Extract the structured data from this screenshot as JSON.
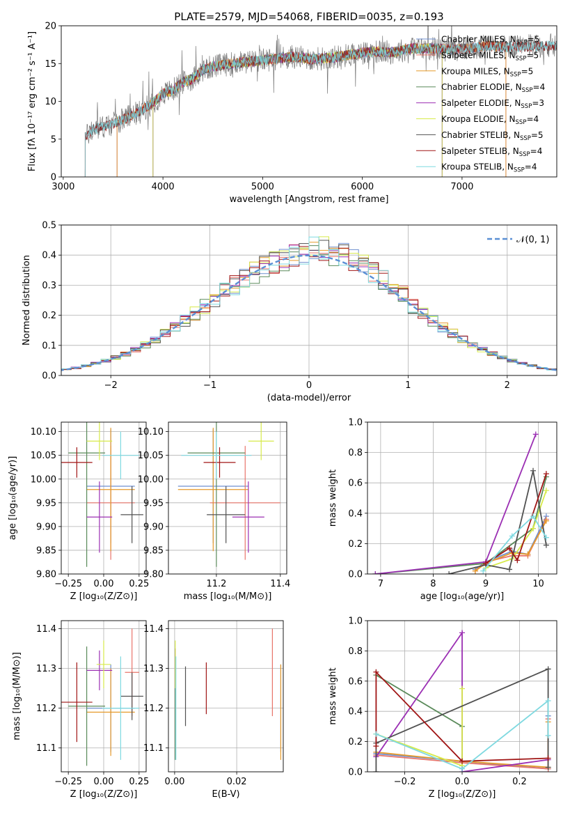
{
  "figure": {
    "title": "PLATE=2579, MJD=54068, FIBERID=0035, z=0.193"
  },
  "colors": {
    "chabrier_miles": "#6f8fcf",
    "salpeter_miles": "#e8746a",
    "kroupa_miles": "#e69a2a",
    "chabrier_elodie": "#5a8a5a",
    "salpeter_elodie": "#9b2fb3",
    "kroupa_elodie": "#d7ea4a",
    "chabrier_stelib": "#505050",
    "salpeter_stelib": "#a01515",
    "kroupa_stelib": "#7fd9e0",
    "gaussian": "#5a8fd4",
    "grid": "#b0b0b0",
    "data_spectrum": "#777777"
  },
  "chart_data": [
    {
      "id": "spectrum",
      "type": "line",
      "xlabel": "wavelength [Angstrom, rest frame]",
      "ylabel": "Flux [fλ 10⁻¹⁷ erg cm⁻² s⁻¹ A⁻¹]",
      "xlim": [
        2980,
        7950
      ],
      "ylim": [
        0,
        20
      ],
      "xticks": [
        3000,
        4000,
        5000,
        6000,
        7000
      ],
      "yticks": [
        0,
        5,
        10,
        15,
        20
      ],
      "grid": false,
      "legend_position": "upper-right",
      "legend": [
        {
          "label": "Chabrier MILES, N",
          "sub": "SSP",
          "suffix": "=5",
          "color_key": "chabrier_miles"
        },
        {
          "label": "Salpeter MILES, N",
          "sub": "SSP",
          "suffix": "=5",
          "color_key": "salpeter_miles"
        },
        {
          "label": "Kroupa MILES, N",
          "sub": "SSP",
          "suffix": "=5",
          "color_key": "kroupa_miles"
        },
        {
          "label": "Chabrier ELODIE, N",
          "sub": "SSP",
          "suffix": "=4",
          "color_key": "chabrier_elodie"
        },
        {
          "label": "Salpeter ELODIE, N",
          "sub": "SSP",
          "suffix": "=3",
          "color_key": "salpeter_elodie"
        },
        {
          "label": "Kroupa ELODIE, N",
          "sub": "SSP",
          "suffix": "=4",
          "color_key": "kroupa_elodie"
        },
        {
          "label": "Chabrier STELIB, N",
          "sub": "SSP",
          "suffix": "=5",
          "color_key": "chabrier_stelib"
        },
        {
          "label": "Salpeter STELIB, N",
          "sub": "SSP",
          "suffix": "=4",
          "color_key": "salpeter_stelib"
        },
        {
          "label": "Kroupa STELIB, N",
          "sub": "SSP",
          "suffix": "=4",
          "color_key": "kroupa_stelib"
        }
      ],
      "continuum": {
        "x": [
          3200,
          3300,
          3450,
          3600,
          3750,
          3900,
          4000,
          4100,
          4200,
          4300,
          4400,
          4500,
          4700,
          4900,
          5100,
          5300,
          5500,
          5700,
          5900,
          6100,
          6300,
          6500,
          6700,
          6900,
          7100,
          7300,
          7500,
          7700,
          7900
        ],
        "y": [
          5.0,
          6.3,
          6.8,
          7.6,
          8.5,
          9.8,
          11.0,
          11.5,
          12.5,
          13.0,
          14.2,
          14.6,
          15.0,
          15.3,
          15.6,
          15.9,
          15.6,
          15.8,
          16.2,
          16.6,
          16.5,
          17.0,
          17.0,
          16.8,
          17.1,
          17.3,
          17.2,
          17.3,
          17.4
        ]
      },
      "model_ranges": [
        {
          "color_key": "chabrier_miles",
          "x": [
            3540,
            7440
          ]
        },
        {
          "color_key": "salpeter_miles",
          "x": [
            3540,
            7440
          ]
        },
        {
          "color_key": "kroupa_miles",
          "x": [
            3540,
            7440
          ]
        },
        {
          "color_key": "chabrier_elodie",
          "x": [
            3900,
            6800
          ]
        },
        {
          "color_key": "salpeter_elodie",
          "x": [
            3900,
            6800
          ]
        },
        {
          "color_key": "kroupa_elodie",
          "x": [
            3900,
            6800
          ]
        },
        {
          "color_key": "chabrier_stelib",
          "x": [
            3220,
            7950
          ]
        },
        {
          "color_key": "salpeter_stelib",
          "x": [
            3220,
            7950
          ]
        },
        {
          "color_key": "kroupa_stelib",
          "x": [
            3220,
            7950
          ]
        }
      ]
    },
    {
      "id": "residuals",
      "type": "histogram",
      "xlabel": "(data-model)/error",
      "ylabel": "Normed distribution",
      "xlim": [
        -2.5,
        2.5
      ],
      "ylim": [
        0,
        0.5
      ],
      "xticks": [
        -2,
        -1,
        0,
        1,
        2
      ],
      "yticks": [
        0.0,
        0.1,
        0.2,
        0.3,
        0.4,
        0.5
      ],
      "grid": true,
      "bin_width": 0.1,
      "legend_position": "upper-right",
      "gaussian_label": "𝒩(0, 1)",
      "series_colors": [
        "chabrier_miles",
        "salpeter_miles",
        "kroupa_miles",
        "chabrier_elodie",
        "salpeter_elodie",
        "kroupa_elodie",
        "chabrier_stelib",
        "salpeter_stelib",
        "kroupa_stelib"
      ]
    },
    {
      "id": "age_vs_Z",
      "type": "errorbar",
      "xlabel": "Z [log₁₀(Z/Z⊙)]",
      "ylabel": "age  [log₁₀(age/yr)]",
      "xlim": [
        -0.3,
        0.3
      ],
      "ylim": [
        9.8,
        10.12
      ],
      "xticks": [
        -0.25,
        0.0,
        0.25
      ],
      "yticks": [
        9.8,
        9.85,
        9.9,
        9.95,
        10.0,
        10.05,
        10.1
      ],
      "xtick_labels": [
        "−0.25",
        "0.00",
        "0.25"
      ],
      "ytick_labels": [
        "9.80",
        "9.85",
        "9.90",
        "9.95",
        "10.00",
        "10.05",
        "10.10"
      ],
      "grid": true,
      "points": [
        {
          "color_key": "chabrier_miles",
          "x": 0.05,
          "xerr": 0.17,
          "y": 9.985,
          "yerr": 0.12
        },
        {
          "color_key": "salpeter_miles",
          "x": 0.05,
          "xerr": 0.17,
          "y": 9.95,
          "yerr": 0.12
        },
        {
          "color_key": "kroupa_miles",
          "x": 0.05,
          "xerr": 0.17,
          "y": 9.978,
          "yerr": 0.13
        },
        {
          "color_key": "chabrier_elodie",
          "x": -0.12,
          "xerr": 0.13,
          "y": 10.055,
          "yerr": 0.24
        },
        {
          "color_key": "salpeter_elodie",
          "x": -0.03,
          "xerr": 0.09,
          "y": 9.92,
          "yerr": 0.075
        },
        {
          "color_key": "kroupa_elodie",
          "x": -0.03,
          "xerr": 0.09,
          "y": 10.08,
          "yerr": 0.04
        },
        {
          "color_key": "chabrier_stelib",
          "x": 0.2,
          "xerr": 0.08,
          "y": 9.925,
          "yerr": 0.06
        },
        {
          "color_key": "salpeter_stelib",
          "x": -0.19,
          "xerr": 0.11,
          "y": 10.035,
          "yerr": 0.032
        },
        {
          "color_key": "kroupa_stelib",
          "x": 0.12,
          "xerr": 0.13,
          "y": 10.05,
          "yerr": 0.05
        }
      ]
    },
    {
      "id": "age_vs_mass",
      "type": "errorbar",
      "xlabel": "mass [log₁₀(M/M⊙)]",
      "ylabel": "",
      "xlim": [
        11.05,
        11.42
      ],
      "ylim": [
        9.8,
        10.12
      ],
      "xticks": [
        11.2,
        11.4
      ],
      "yticks": [
        9.8,
        9.85,
        9.9,
        9.95,
        10.0,
        10.05,
        10.1
      ],
      "xtick_labels": [
        "11.2",
        "11.4"
      ],
      "ytick_labels": [
        "9.80",
        "9.85",
        "9.90",
        "9.95",
        "10.00",
        "10.05",
        "10.10"
      ],
      "grid": true,
      "points": [
        {
          "color_key": "chabrier_miles",
          "x": 11.19,
          "xerr": 0.11,
          "y": 9.985,
          "yerr": 0.12
        },
        {
          "color_key": "salpeter_miles",
          "x": 11.29,
          "xerr": 0.11,
          "y": 9.95,
          "yerr": 0.12
        },
        {
          "color_key": "kroupa_miles",
          "x": 11.19,
          "xerr": 0.11,
          "y": 9.978,
          "yerr": 0.13
        },
        {
          "color_key": "chabrier_elodie",
          "x": 11.2,
          "xerr": 0.09,
          "y": 10.055,
          "yerr": 0.24
        },
        {
          "color_key": "salpeter_elodie",
          "x": 11.3,
          "xerr": 0.05,
          "y": 9.92,
          "yerr": 0.075
        },
        {
          "color_key": "kroupa_elodie",
          "x": 11.34,
          "xerr": 0.04,
          "y": 10.08,
          "yerr": 0.04
        },
        {
          "color_key": "chabrier_stelib",
          "x": 11.23,
          "xerr": 0.06,
          "y": 9.925,
          "yerr": 0.06
        },
        {
          "color_key": "salpeter_stelib",
          "x": 11.21,
          "xerr": 0.05,
          "y": 10.035,
          "yerr": 0.032
        },
        {
          "color_key": "kroupa_stelib",
          "x": 11.2,
          "xerr": 0.11,
          "y": 10.05,
          "yerr": 0.05
        }
      ]
    },
    {
      "id": "weight_vs_age",
      "type": "line",
      "xlabel": "age  [log₁₀(age/yr)]",
      "ylabel": "mass weight",
      "xlim": [
        6.75,
        10.35
      ],
      "ylim": [
        0,
        1
      ],
      "xticks": [
        7,
        8,
        9,
        10
      ],
      "yticks": [
        0.0,
        0.2,
        0.4,
        0.6,
        0.8,
        1.0
      ],
      "grid": true,
      "series": [
        {
          "color_key": "chabrier_miles",
          "x": [
            8.8,
            9.0,
            9.5,
            9.8,
            10.15
          ],
          "y": [
            0.03,
            0.08,
            0.15,
            0.13,
            0.38
          ]
        },
        {
          "color_key": "salpeter_miles",
          "x": [
            8.8,
            9.0,
            9.5,
            9.8,
            10.15
          ],
          "y": [
            0.02,
            0.08,
            0.12,
            0.12,
            0.36
          ]
        },
        {
          "color_key": "kroupa_miles",
          "x": [
            8.8,
            9.0,
            9.5,
            9.8,
            10.15
          ],
          "y": [
            0.02,
            0.07,
            0.14,
            0.13,
            0.35
          ]
        },
        {
          "color_key": "chabrier_elodie",
          "x": [
            6.9,
            9.0,
            9.9,
            10.15
          ],
          "y": [
            0.0,
            0.07,
            0.3,
            0.64
          ]
        },
        {
          "color_key": "salpeter_elodie",
          "x": [
            6.9,
            9.0,
            9.95
          ],
          "y": [
            0.0,
            0.08,
            0.92
          ]
        },
        {
          "color_key": "kroupa_elodie",
          "x": [
            9.0,
            9.5,
            9.9,
            10.15
          ],
          "y": [
            0.04,
            0.1,
            0.3,
            0.55
          ]
        },
        {
          "color_key": "chabrier_stelib",
          "x": [
            8.3,
            9.0,
            9.45,
            9.9,
            10.15
          ],
          "y": [
            0.0,
            0.06,
            0.03,
            0.68,
            0.19
          ]
        },
        {
          "color_key": "salpeter_stelib",
          "x": [
            9.0,
            9.45,
            9.6,
            10.15
          ],
          "y": [
            0.07,
            0.17,
            0.09,
            0.66
          ]
        },
        {
          "color_key": "kroupa_stelib",
          "x": [
            8.95,
            9.5,
            9.9,
            10.15
          ],
          "y": [
            0.02,
            0.25,
            0.38,
            0.24
          ]
        }
      ]
    },
    {
      "id": "mass_vs_Z",
      "type": "errorbar",
      "xlabel": "Z [log₁₀(Z/Z⊙)]",
      "ylabel": "mass [log₁₀(M/M⊙)]",
      "xlim": [
        -0.3,
        0.3
      ],
      "ylim": [
        11.04,
        11.42
      ],
      "xticks": [
        -0.25,
        0.0,
        0.25
      ],
      "yticks": [
        11.1,
        11.2,
        11.3,
        11.4
      ],
      "xtick_labels": [
        "−0.25",
        "0.00",
        "0.25"
      ],
      "ytick_labels": [
        "11.1",
        "11.2",
        "11.3",
        "11.4"
      ],
      "grid": true,
      "points": [
        {
          "color_key": "chabrier_miles",
          "x": 0.05,
          "xerr": 0.17,
          "y": 11.2,
          "yerr": 0.11
        },
        {
          "color_key": "salpeter_miles",
          "x": 0.2,
          "xerr": 0.05,
          "y": 11.29,
          "yerr": 0.11
        },
        {
          "color_key": "kroupa_miles",
          "x": 0.05,
          "xerr": 0.17,
          "y": 11.19,
          "yerr": 0.11
        },
        {
          "color_key": "chabrier_elodie",
          "x": -0.12,
          "xerr": 0.13,
          "y": 11.205,
          "yerr": 0.15
        },
        {
          "color_key": "salpeter_elodie",
          "x": -0.03,
          "xerr": 0.09,
          "y": 11.295,
          "yerr": 0.05
        },
        {
          "color_key": "kroupa_elodie",
          "x": 0.0,
          "xerr": 0.05,
          "y": 11.31,
          "yerr": 0.06
        },
        {
          "color_key": "chabrier_stelib",
          "x": 0.2,
          "xerr": 0.08,
          "y": 11.23,
          "yerr": 0.06
        },
        {
          "color_key": "salpeter_stelib",
          "x": -0.19,
          "xerr": 0.11,
          "y": 11.215,
          "yerr": 0.1
        },
        {
          "color_key": "kroupa_stelib",
          "x": 0.12,
          "xerr": 0.13,
          "y": 11.2,
          "yerr": 0.13
        }
      ]
    },
    {
      "id": "mass_vs_EBV",
      "type": "errorbar",
      "xlabel": "E(B-V)",
      "ylabel": "",
      "xlim": [
        -0.002,
        0.035
      ],
      "ylim": [
        11.04,
        11.42
      ],
      "xticks": [
        0.0,
        0.02
      ],
      "yticks": [
        11.1,
        11.2,
        11.3,
        11.4
      ],
      "xtick_labels": [
        "0.00",
        "0.02"
      ],
      "ytick_labels": [
        "11.1",
        "11.2",
        "11.3",
        "11.4"
      ],
      "grid": true,
      "points": [
        {
          "color_key": "chabrier_miles",
          "x": 0.0342,
          "xerr": 0,
          "y": 11.2,
          "yerr": 0.11
        },
        {
          "color_key": "salpeter_miles",
          "x": 0.0315,
          "xerr": 0,
          "y": 11.29,
          "yerr": 0.11
        },
        {
          "color_key": "kroupa_miles",
          "x": 0.0342,
          "xerr": 0,
          "y": 11.19,
          "yerr": 0.12
        },
        {
          "color_key": "chabrier_elodie",
          "x": 0.0002,
          "xerr": 0,
          "y": 11.21,
          "yerr": 0.14
        },
        {
          "color_key": "salpeter_elodie",
          "x": 0.0002,
          "xerr": 0,
          "y": 11.3,
          "yerr": 0.05
        },
        {
          "color_key": "kroupa_elodie",
          "x": 0.0002,
          "xerr": 0,
          "y": 11.31,
          "yerr": 0.06
        },
        {
          "color_key": "chabrier_stelib",
          "x": 0.0035,
          "xerr": 0,
          "y": 11.23,
          "yerr": 0.075
        },
        {
          "color_key": "salpeter_stelib",
          "x": 0.0102,
          "xerr": 0,
          "y": 11.25,
          "yerr": 0.065
        },
        {
          "color_key": "kroupa_stelib",
          "x": 0.0004,
          "xerr": 0,
          "y": 11.2,
          "yerr": 0.13
        }
      ]
    },
    {
      "id": "weight_vs_Z",
      "type": "line",
      "xlabel": "Z [log₁₀(Z/Z⊙)]",
      "ylabel": "mass weight",
      "xlim": [
        -0.33,
        0.33
      ],
      "ylim": [
        0,
        1
      ],
      "xticks": [
        -0.2,
        0.0,
        0.2
      ],
      "yticks": [
        0.0,
        0.2,
        0.4,
        0.6,
        0.8,
        1.0
      ],
      "xtick_labels": [
        "−0.2",
        "0.0",
        "0.2"
      ],
      "grid": true,
      "series": [
        {
          "color_key": "chabrier_miles",
          "x": [
            -0.3,
            0.0,
            0.3,
            0.3
          ],
          "y": [
            0.12,
            0.07,
            0.02,
            0.37
          ]
        },
        {
          "color_key": "salpeter_miles",
          "x": [
            -0.3,
            0.0,
            0.3,
            0.3
          ],
          "y": [
            0.11,
            0.06,
            0.02,
            0.35
          ]
        },
        {
          "color_key": "kroupa_miles",
          "x": [
            -0.3,
            0.0,
            0.3,
            0.3
          ],
          "y": [
            0.13,
            0.07,
            0.03,
            0.33
          ]
        },
        {
          "color_key": "chabrier_elodie",
          "x": [
            -0.3,
            0.0,
            0.0
          ],
          "y": [
            0.64,
            0.3,
            0.07
          ]
        },
        {
          "color_key": "salpeter_elodie",
          "x": [
            -0.3,
            0.0,
            0.0,
            0.3
          ],
          "y": [
            0.1,
            0.92,
            0.0,
            0.08
          ]
        },
        {
          "color_key": "kroupa_elodie",
          "x": [
            0.0,
            0.0,
            -0.3
          ],
          "y": [
            0.55,
            0.04,
            0.25
          ]
        },
        {
          "color_key": "chabrier_stelib",
          "x": [
            -0.3,
            -0.3,
            0.3,
            0.3
          ],
          "y": [
            0.0,
            0.19,
            0.68,
            0.03
          ]
        },
        {
          "color_key": "salpeter_stelib",
          "x": [
            -0.3,
            -0.3,
            0.0,
            0.3
          ],
          "y": [
            0.17,
            0.66,
            0.07,
            0.09
          ]
        },
        {
          "color_key": "kroupa_stelib",
          "x": [
            -0.3,
            0.0,
            0.3,
            0.3
          ],
          "y": [
            0.25,
            0.02,
            0.47,
            0.24
          ]
        }
      ]
    }
  ]
}
